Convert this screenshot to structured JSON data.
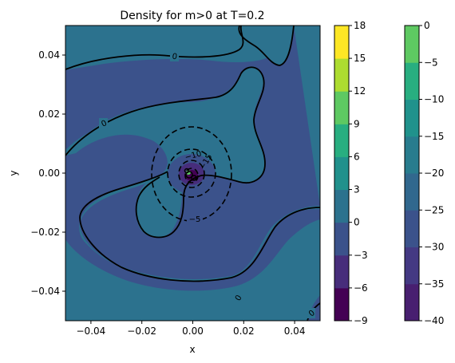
{
  "chart_data": {
    "type": "contour",
    "title": "Density for m>0 at T=0.2",
    "xlabel": "x",
    "ylabel": "y",
    "xlim": [
      -0.05,
      0.05
    ],
    "ylim": [
      -0.05,
      0.05
    ],
    "x_ticks": [
      "−0.04",
      "−0.02",
      "0.00",
      "0.02",
      "0.04"
    ],
    "y_ticks": [
      "−0.04",
      "−0.02",
      "0.00",
      "0.02",
      "0.04"
    ],
    "filled_levels": [
      -9,
      -6,
      -3,
      0,
      3,
      6,
      9,
      12,
      15,
      18
    ],
    "level_colors": [
      "#440154",
      "#472d7b",
      "#3b528b",
      "#2c728e",
      "#21918c",
      "#28ae80",
      "#5ec962",
      "#addc30",
      "#fde725"
    ],
    "colorbar_1": {
      "ticks": [
        "−9",
        "−6",
        "−3",
        "0",
        "3",
        "6",
        "9",
        "12",
        "15",
        "18"
      ]
    },
    "colorbar_2": {
      "ticks": [
        "−40",
        "−35",
        "−30",
        "−25",
        "−20",
        "−15",
        "−10",
        "−5",
        "0"
      ],
      "colors": [
        "#481f70",
        "#443983",
        "#3b528b",
        "#31688e",
        "#287c8e",
        "#20928c",
        "#28ae80",
        "#5ec962",
        "#addc30",
        "#fde725"
      ]
    },
    "contour_labels": [
      "0",
      "0",
      "0",
      "0",
      "−5",
      "−10",
      "−15"
    ]
  }
}
